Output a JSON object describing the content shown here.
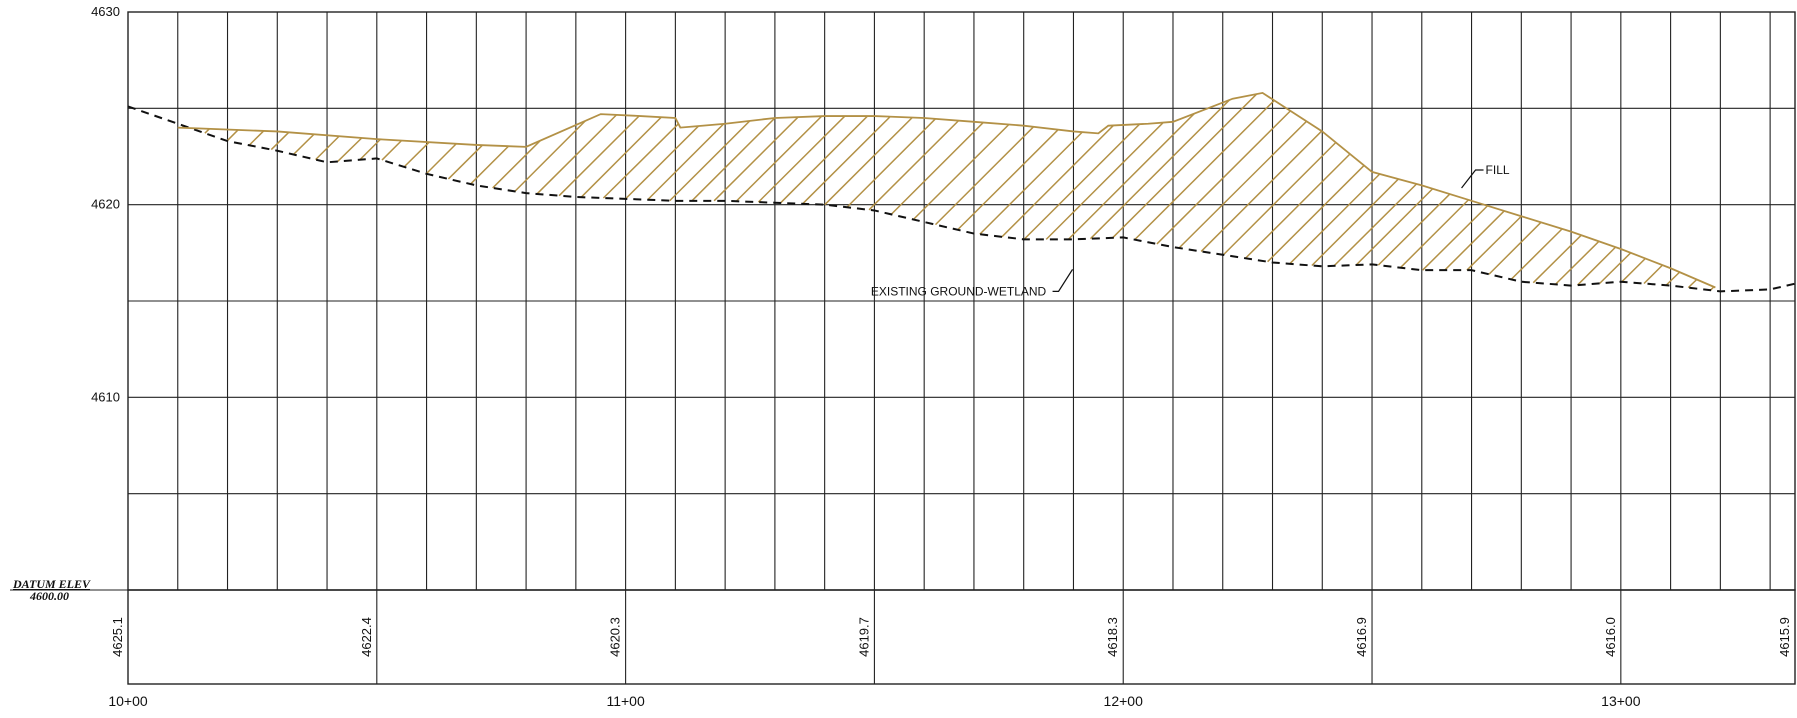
{
  "chart_data": {
    "type": "line",
    "xlim": [
      1000,
      1335
    ],
    "ylim": [
      4600,
      4630
    ],
    "y_ticks": [
      4630,
      4620,
      4610
    ],
    "y_tick_labels": [
      "4630",
      "4620",
      "4610"
    ],
    "x_ticks": [
      1000,
      1100,
      1200,
      1300
    ],
    "x_tick_labels": [
      "10+00",
      "11+00",
      "12+00",
      "13+00"
    ],
    "datum": {
      "title": "DATUM ELEV",
      "value": "4600.00"
    },
    "elevation_labels": [
      {
        "station": 1000,
        "label": "4625.1"
      },
      {
        "station": 1050,
        "label": "4622.4"
      },
      {
        "station": 1100,
        "label": "4620.3"
      },
      {
        "station": 1150,
        "label": "4619.7"
      },
      {
        "station": 1200,
        "label": "4618.3"
      },
      {
        "station": 1250,
        "label": "4616.9"
      },
      {
        "station": 1300,
        "label": "4616.0"
      },
      {
        "station": 1335,
        "label": "4615.9"
      }
    ],
    "series": [
      {
        "name": "EXISTING GROUND-WETLAND",
        "style": "dashed",
        "color": "#111111",
        "x": [
          1000,
          1010,
          1020,
          1030,
          1040,
          1050,
          1060,
          1070,
          1080,
          1090,
          1100,
          1110,
          1120,
          1130,
          1140,
          1150,
          1160,
          1170,
          1180,
          1190,
          1200,
          1210,
          1220,
          1230,
          1240,
          1250,
          1260,
          1270,
          1280,
          1290,
          1300,
          1310,
          1320,
          1330,
          1335
        ],
        "y": [
          4625.1,
          4624.2,
          4623.3,
          4622.8,
          4622.2,
          4622.4,
          4621.6,
          4621.0,
          4620.6,
          4620.4,
          4620.3,
          4620.2,
          4620.2,
          4620.1,
          4620.0,
          4619.7,
          4619.1,
          4618.5,
          4618.2,
          4618.2,
          4618.3,
          4617.8,
          4617.4,
          4617.0,
          4616.8,
          4616.9,
          4616.6,
          4616.6,
          4616.0,
          4615.8,
          4616.0,
          4615.8,
          4615.5,
          4615.6,
          4615.9
        ]
      },
      {
        "name": "FILL",
        "style": "solid-hatched",
        "color": "#b39146",
        "x": [
          1010,
          1030,
          1050,
          1070,
          1080,
          1095,
          1103,
          1110,
          1111,
          1120,
          1130,
          1140,
          1150,
          1160,
          1170,
          1180,
          1190,
          1195,
          1197,
          1205,
          1210,
          1222,
          1228,
          1240,
          1250,
          1260,
          1270,
          1280,
          1290,
          1300,
          1310,
          1319
        ],
        "y": [
          4624.0,
          4623.8,
          4623.4,
          4623.1,
          4623.0,
          4624.7,
          4624.6,
          4624.5,
          4624.0,
          4624.2,
          4624.5,
          4624.6,
          4624.6,
          4624.5,
          4624.3,
          4624.1,
          4623.8,
          4623.7,
          4624.1,
          4624.2,
          4624.3,
          4625.5,
          4625.8,
          4623.8,
          4621.7,
          4621.0,
          4620.2,
          4619.4,
          4618.6,
          4617.7,
          4616.7,
          4615.7
        ]
      }
    ],
    "annotations": [
      {
        "text": "FILL",
        "x": 1270,
        "y": 4621.8
      },
      {
        "text": "EXISTING GROUND-WETLAND",
        "x": 1186,
        "y": 4615.5
      }
    ],
    "grid": true
  }
}
